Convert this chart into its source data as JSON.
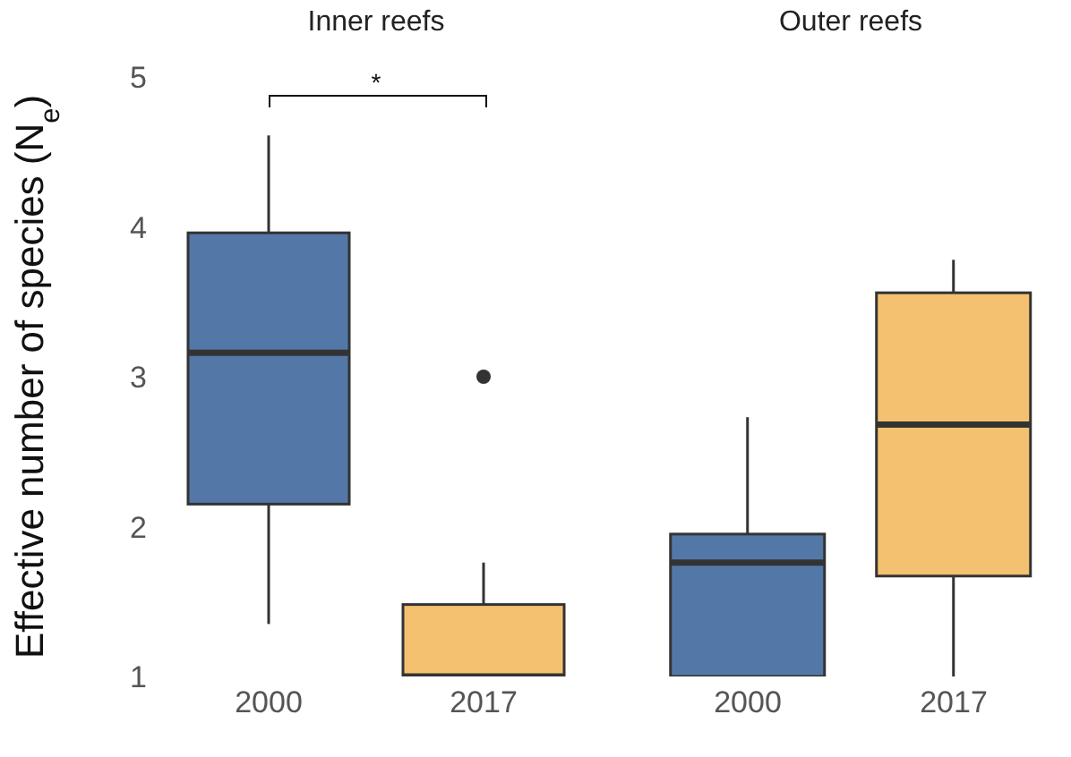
{
  "chart_data": [
    {
      "type": "box",
      "title": "Inner reefs",
      "ylabel": "Effective number of species (N$_{e}$)",
      "categories": [
        "2000",
        "2017"
      ],
      "boxes": [
        {
          "low": 1.35,
          "q1": 2.15,
          "median": 3.16,
          "q3": 3.96,
          "high": 4.61
        },
        {
          "low": 1.0,
          "q1": 1.0,
          "median": 1.0,
          "q3": 1.48,
          "high": 1.76,
          "outliers": [
            3.0
          ]
        }
      ],
      "colors": [
        "#5378a8",
        "#f3c16f"
      ],
      "ylim": [
        1,
        5
      ],
      "yticks": [
        1,
        2,
        3,
        4,
        5
      ],
      "annotations": [
        "*"
      ]
    },
    {
      "type": "box",
      "title": "Outer reefs",
      "categories": [
        "2000",
        "2017"
      ],
      "boxes": [
        {
          "low": 1.0,
          "q1": 1.0,
          "median": 1.76,
          "q3": 1.95,
          "high": 2.73
        },
        {
          "low": 1.0,
          "q1": 1.67,
          "median": 2.68,
          "q3": 3.56,
          "high": 3.78
        }
      ],
      "colors": [
        "#5378a8",
        "#f3c16f"
      ],
      "ylim": [
        1,
        5
      ],
      "yticks": [
        1,
        2,
        3,
        4,
        5
      ],
      "tick_labels": "x"
    }
  ]
}
